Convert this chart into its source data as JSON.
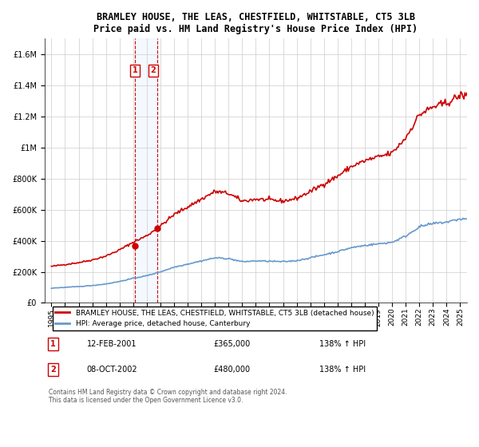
{
  "title": "BRAMLEY HOUSE, THE LEAS, CHESTFIELD, WHITSTABLE, CT5 3LB",
  "subtitle": "Price paid vs. HM Land Registry's House Price Index (HPI)",
  "legend_line1": "BRAMLEY HOUSE, THE LEAS, CHESTFIELD, WHITSTABLE, CT5 3LB (detached house)",
  "legend_line2": "HPI: Average price, detached house, Canterbury",
  "footer": "Contains HM Land Registry data © Crown copyright and database right 2024.\nThis data is licensed under the Open Government Licence v3.0.",
  "sale1_label": "1",
  "sale1_date": "12-FEB-2001",
  "sale1_price": "£365,000",
  "sale1_hpi": "138% ↑ HPI",
  "sale2_label": "2",
  "sale2_date": "08-OCT-2002",
  "sale2_price": "£480,000",
  "sale2_hpi": "138% ↑ HPI",
  "red_color": "#cc0000",
  "blue_color": "#6699cc",
  "shade_color": "#ddeeff",
  "background_color": "#ffffff",
  "grid_color": "#cccccc",
  "ylim": [
    0,
    1700000
  ],
  "xlim_start": 1994.5,
  "xlim_end": 2025.5,
  "sale1_year": 2001.12,
  "sale2_year": 2002.77,
  "sale1_price_val": 365000,
  "sale2_price_val": 480000
}
